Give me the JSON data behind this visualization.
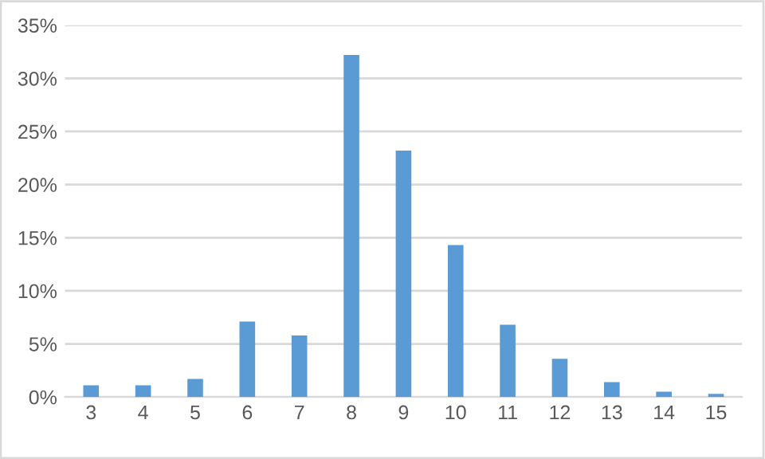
{
  "chart_data": {
    "type": "bar",
    "categories": [
      "3",
      "4",
      "5",
      "6",
      "7",
      "8",
      "9",
      "10",
      "11",
      "12",
      "13",
      "14",
      "15"
    ],
    "series": [
      {
        "color": "#5b9bd5",
        "values": [
          1.1,
          1.1,
          1.7,
          7.1,
          5.8,
          32.2,
          23.2,
          14.3,
          6.8,
          3.6,
          1.4,
          0.5,
          0.3
        ]
      }
    ],
    "ylim": [
      0,
      35
    ],
    "yticks": [
      {
        "value": 0,
        "label": "0%"
      },
      {
        "value": 5,
        "label": "5%"
      },
      {
        "value": 10,
        "label": "10%"
      },
      {
        "value": 15,
        "label": "15%"
      },
      {
        "value": 20,
        "label": "20%"
      },
      {
        "value": 25,
        "label": "25%"
      },
      {
        "value": 30,
        "label": "30%"
      },
      {
        "value": 35,
        "label": "35%"
      }
    ],
    "grid": "y"
  }
}
